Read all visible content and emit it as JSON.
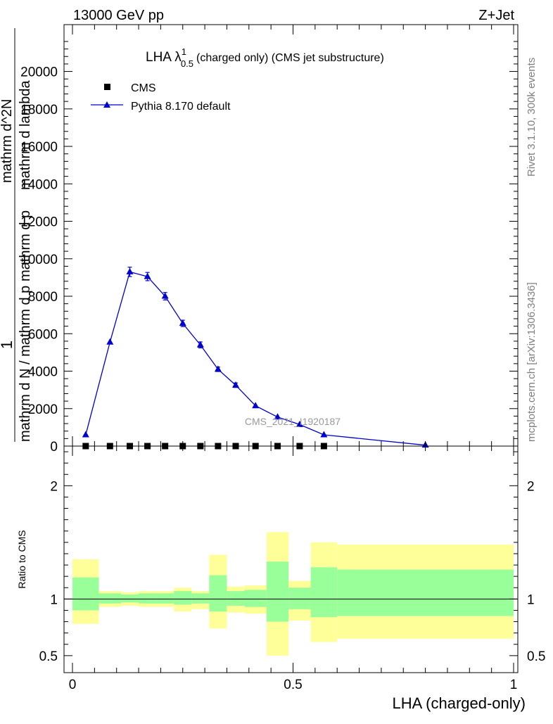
{
  "header": {
    "energy_label": "13000 GeV pp",
    "process_label": "Z+Jet"
  },
  "side_labels": {
    "rivet": "Rivet 3.1.10,  300k events",
    "mcplots": "mcplots.cern.ch [arXiv:1306.3436]"
  },
  "watermark": "CMS_2021_I1920187",
  "colors": {
    "pythia": "#0000cc",
    "band_outer": "#ffff99",
    "band_inner": "#99ff99",
    "cms_marker": "#000000"
  },
  "chart_data": [
    {
      "type": "line",
      "title": {
        "main": "LHA λ",
        "superscript": "1",
        "subscript": "0.5",
        "suffix": "(charged only) (CMS jet substructure)"
      },
      "ylabel": {
        "numerator": "1",
        "denominator_lines": [
          "mathrm d N / mathrm d p",
          "mathrm d p",
          "mathrm d^2N",
          "mathrm d lambda"
        ]
      },
      "xlim": [
        0,
        1
      ],
      "ylim": [
        0,
        22500
      ],
      "yticks": [
        {
          "value": 0,
          "label": "0"
        },
        {
          "value": 2000,
          "label": "2000"
        },
        {
          "value": 4000,
          "label": "4000"
        },
        {
          "value": 6000,
          "label": "6000"
        },
        {
          "value": 8000,
          "label": "8000"
        },
        {
          "value": 10000,
          "label": "10000"
        },
        {
          "value": 12000,
          "label": "12000"
        },
        {
          "value": 14000,
          "label": "14000"
        },
        {
          "value": 16000,
          "label": "16000"
        },
        {
          "value": 18000,
          "label": "18000"
        },
        {
          "value": 20000,
          "label": "20000"
        }
      ],
      "legend": [
        {
          "label": "CMS",
          "marker": "square"
        },
        {
          "label": "Pythia 8.170 default",
          "marker": "triangle"
        }
      ],
      "series": [
        {
          "name": "CMS",
          "x": [
            0.03,
            0.085,
            0.13,
            0.17,
            0.21,
            0.25,
            0.29,
            0.33,
            0.37,
            0.415,
            0.465,
            0.515,
            0.57
          ],
          "values": [
            0,
            0,
            0,
            0,
            0,
            0,
            0,
            0,
            0,
            0,
            0,
            0,
            0
          ]
        },
        {
          "name": "Pythia 8.170 default",
          "x": [
            0.03,
            0.085,
            0.13,
            0.17,
            0.21,
            0.25,
            0.29,
            0.33,
            0.37,
            0.415,
            0.465,
            0.515,
            0.57,
            0.8
          ],
          "values": [
            600,
            5550,
            9300,
            9050,
            8000,
            6550,
            5400,
            4100,
            3250,
            2150,
            1550,
            1150,
            600,
            50
          ],
          "errors": [
            0,
            0,
            250,
            220,
            200,
            170,
            160,
            120,
            120,
            0,
            0,
            0,
            0,
            0
          ]
        }
      ]
    },
    {
      "type": "area",
      "ylabel": "Ratio to CMS",
      "xlabel": "LHA (charged-only)",
      "xlim": [
        0,
        1
      ],
      "ylim": [
        0.35,
        2.35
      ],
      "xticks": [
        {
          "value": 0,
          "label": "0"
        },
        {
          "value": 0.5,
          "label": "0.5"
        },
        {
          "value": 1,
          "label": "1"
        }
      ],
      "yticks": [
        {
          "value": 0.5,
          "label": "0.5"
        },
        {
          "value": 1,
          "label": "1"
        },
        {
          "value": 2,
          "label": "2"
        }
      ],
      "bin_edges": [
        0,
        0.06,
        0.11,
        0.15,
        0.19,
        0.23,
        0.27,
        0.31,
        0.35,
        0.39,
        0.44,
        0.49,
        0.54,
        0.6,
        1.0
      ],
      "outer_band": {
        "lower": [
          0.78,
          0.93,
          0.94,
          0.93,
          0.93,
          0.89,
          0.91,
          0.74,
          0.88,
          0.87,
          0.5,
          0.81,
          0.62,
          0.65
        ],
        "upper": [
          1.35,
          1.07,
          1.06,
          1.07,
          1.07,
          1.1,
          1.07,
          1.39,
          1.11,
          1.12,
          1.59,
          1.16,
          1.5,
          1.48
        ]
      },
      "inner_band": {
        "lower": [
          0.9,
          0.96,
          0.97,
          0.96,
          0.96,
          0.95,
          0.96,
          0.89,
          0.94,
          0.93,
          0.8,
          0.91,
          0.84,
          0.85
        ],
        "upper": [
          1.19,
          1.05,
          1.04,
          1.05,
          1.05,
          1.07,
          1.05,
          1.21,
          1.07,
          1.08,
          1.33,
          1.1,
          1.28,
          1.26
        ]
      },
      "reference_line": 1
    }
  ]
}
